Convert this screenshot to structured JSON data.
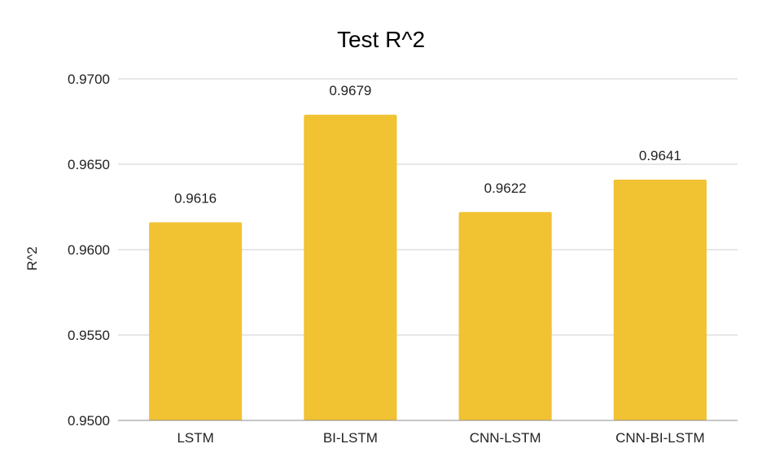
{
  "chart_data": {
    "type": "bar",
    "title": "Test R^2",
    "xlabel": "",
    "ylabel": "R^2",
    "categories": [
      "LSTM",
      "BI-LSTM",
      "CNN-LSTM",
      "CNN-BI-LSTM"
    ],
    "values": [
      0.9616,
      0.9679,
      0.9622,
      0.9641
    ],
    "data_labels": [
      "0.9616",
      "0.9679",
      "0.9622",
      "0.9641"
    ],
    "ylim": [
      0.95,
      0.97
    ],
    "yticks": [
      0.95,
      0.955,
      0.96,
      0.965,
      0.97
    ],
    "ytick_labels": [
      "0.9500",
      "0.9550",
      "0.9600",
      "0.9650",
      "0.9700"
    ],
    "grid": true,
    "legend": "none",
    "bar_color": "#F1C232"
  }
}
